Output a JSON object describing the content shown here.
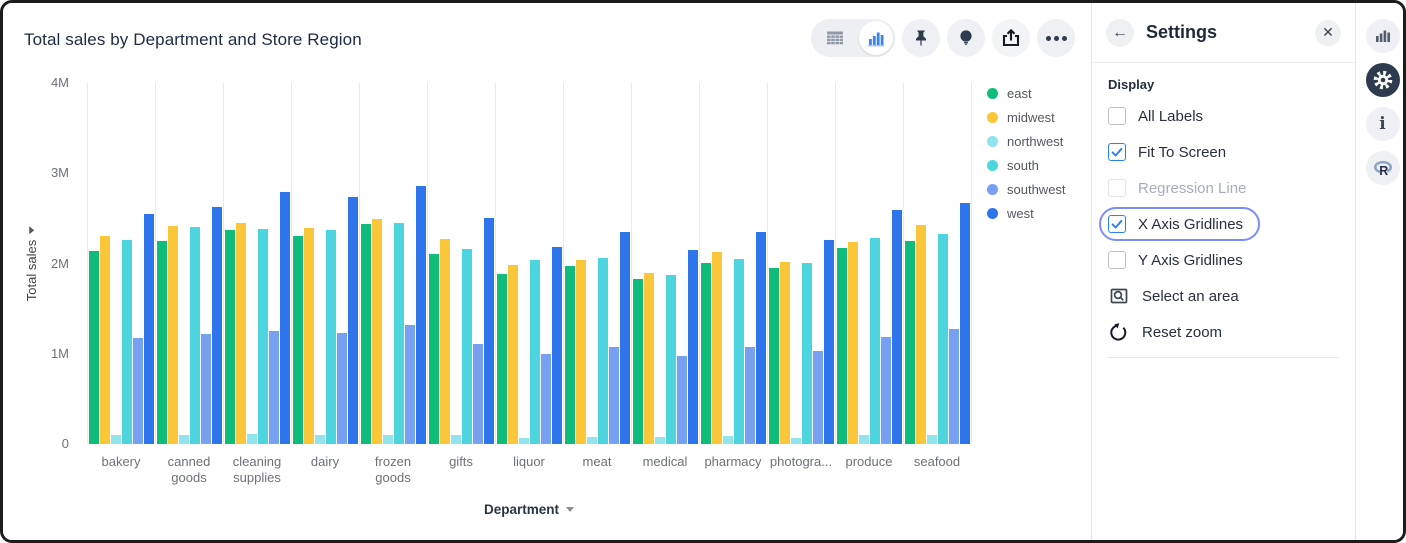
{
  "header": {
    "title": "Total sales by Department and Store Region",
    "toolbar": {
      "selected_view": "chart",
      "buttons": [
        "table-view",
        "chart-view",
        "pin",
        "insights",
        "export",
        "more-options"
      ]
    }
  },
  "chart_data": {
    "type": "bar",
    "title": "Total sales by Department and Store Region",
    "xlabel": "Department",
    "ylabel": "Total sales",
    "ylim": [
      0,
      4000000
    ],
    "ytick_values": [
      0,
      1000000,
      2000000,
      3000000,
      4000000
    ],
    "ytick_labels": [
      "0",
      "1M",
      "2M",
      "3M",
      "4M"
    ],
    "x_gridlines": true,
    "y_gridlines": false,
    "legend_position": "right",
    "categories": [
      "bakery",
      "canned goods",
      "cleaning supplies",
      "dairy",
      "frozen goods",
      "gifts",
      "liquor",
      "meat",
      "medical",
      "pharmacy",
      "photogra...",
      "produce",
      "seafood"
    ],
    "series": [
      {
        "name": "east",
        "color": "#10bc7a",
        "values": [
          2140000,
          2250000,
          2370000,
          2310000,
          2440000,
          2100000,
          1880000,
          1970000,
          1830000,
          2000000,
          1950000,
          2170000,
          2250000
        ]
      },
      {
        "name": "midwest",
        "color": "#fcc63a",
        "values": [
          2310000,
          2420000,
          2450000,
          2390000,
          2490000,
          2270000,
          1980000,
          2040000,
          1900000,
          2130000,
          2020000,
          2240000,
          2430000
        ]
      },
      {
        "name": "northwest",
        "color": "#92e4ec",
        "values": [
          100000,
          100000,
          110000,
          100000,
          100000,
          100000,
          70000,
          80000,
          80000,
          90000,
          70000,
          100000,
          100000
        ]
      },
      {
        "name": "south",
        "color": "#4cd5de",
        "values": [
          2260000,
          2400000,
          2380000,
          2370000,
          2450000,
          2160000,
          2040000,
          2060000,
          1870000,
          2050000,
          2000000,
          2280000,
          2330000
        ]
      },
      {
        "name": "southwest",
        "color": "#77a0f2",
        "values": [
          1180000,
          1220000,
          1250000,
          1230000,
          1320000,
          1110000,
          1000000,
          1080000,
          980000,
          1070000,
          1030000,
          1190000,
          1270000
        ]
      },
      {
        "name": "west",
        "color": "#2e74ea",
        "values": [
          2550000,
          2630000,
          2790000,
          2740000,
          2860000,
          2500000,
          2180000,
          2350000,
          2150000,
          2350000,
          2260000,
          2590000,
          2670000
        ]
      }
    ]
  },
  "settings": {
    "title": "Settings",
    "display_label": "Display",
    "checkboxes": [
      {
        "label": "All Labels",
        "checked": false,
        "disabled": false,
        "focused": false
      },
      {
        "label": "Fit To Screen",
        "checked": true,
        "disabled": false,
        "focused": false
      },
      {
        "label": "Regression Line",
        "checked": false,
        "disabled": true,
        "focused": false
      },
      {
        "label": "X Axis Gridlines",
        "checked": true,
        "disabled": false,
        "focused": true
      },
      {
        "label": "Y Axis Gridlines",
        "checked": false,
        "disabled": false,
        "focused": false
      }
    ],
    "actions": [
      {
        "label": "Select an area",
        "icon": "select-area-icon"
      },
      {
        "label": "Reset zoom",
        "icon": "reset-zoom-icon"
      }
    ]
  },
  "right_rail": {
    "icons": [
      "chart-icon",
      "settings-gear-icon",
      "info-icon",
      "r-language-icon"
    ],
    "active": "settings-gear-icon"
  },
  "colors": {
    "accent_blue": "#2d7ff9",
    "focus_ring": "#7c8cf8",
    "toggle_chart_blue": "#3b82f6",
    "gridline": "#e8eaec"
  }
}
